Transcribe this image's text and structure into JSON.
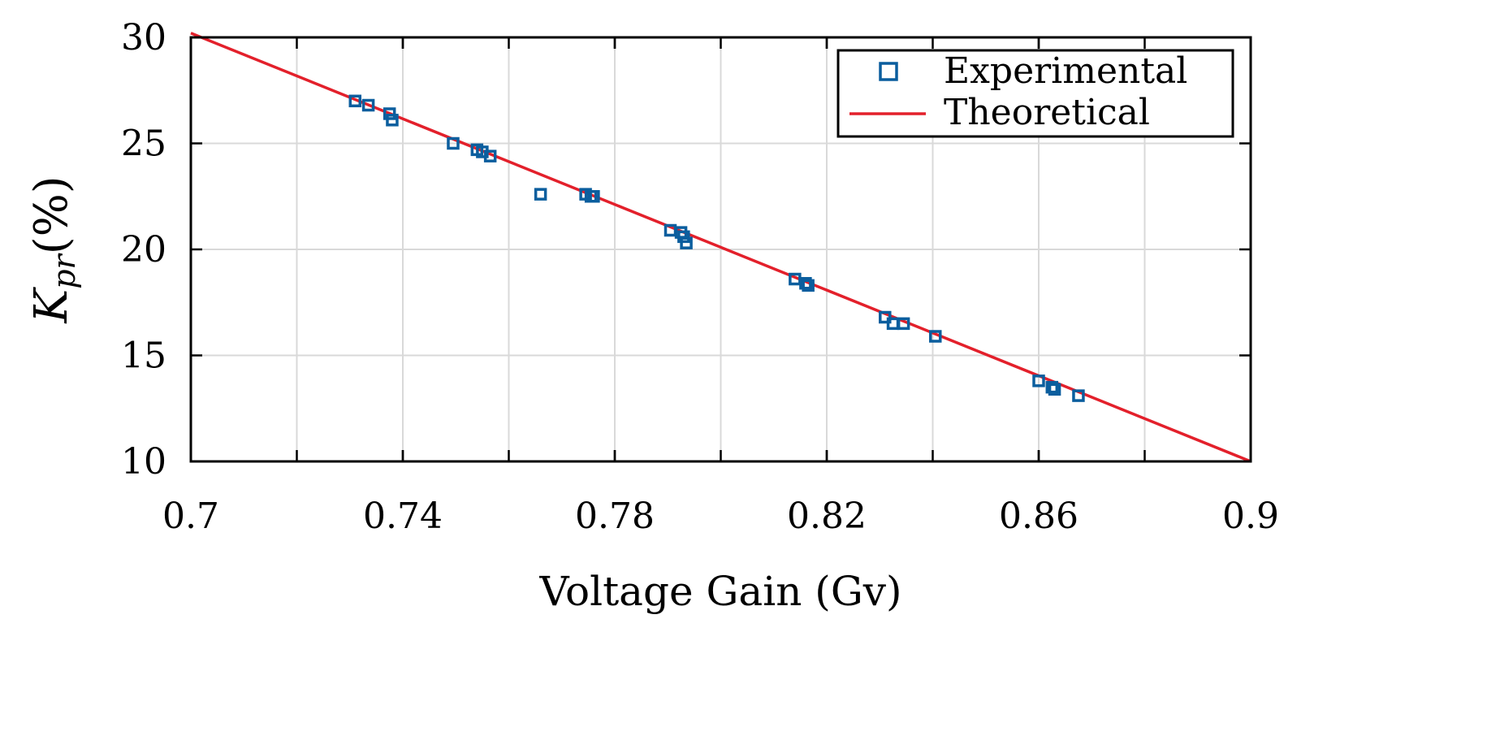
{
  "chart_data": {
    "type": "scatter",
    "title": "",
    "xlabel": "Voltage Gain (Gv)",
    "ylabel_main": "K",
    "ylabel_sub": "pr",
    "ylabel_unit": "(%)",
    "xlim": [
      0.7,
      0.9
    ],
    "ylim": [
      10,
      30
    ],
    "xticks": [
      0.7,
      0.74,
      0.78,
      0.82,
      0.86,
      0.9
    ],
    "xtick_labels": [
      "0.7",
      "0.74",
      "0.78",
      "0.82",
      "0.86",
      "0.9"
    ],
    "xgrid": [
      0.72,
      0.74,
      0.76,
      0.78,
      0.8,
      0.82,
      0.84,
      0.86,
      0.88
    ],
    "yticks": [
      10,
      15,
      20,
      25,
      30
    ],
    "ytick_labels": [
      "10",
      "15",
      "20",
      "25",
      "30"
    ],
    "grid": true,
    "legend_position": "top-right",
    "colors": {
      "experimental": "#0b5e9e",
      "theoretical": "#e3202b",
      "grid": "#d9d9d9",
      "axis": "#000000"
    },
    "series": [
      {
        "name": "Experimental",
        "kind": "scatter",
        "marker": "square",
        "x": [
          0.731,
          0.7335,
          0.7375,
          0.738,
          0.7495,
          0.754,
          0.755,
          0.7565,
          0.766,
          0.7745,
          0.7755,
          0.776,
          0.7905,
          0.7925,
          0.793,
          0.7935,
          0.814,
          0.816,
          0.8165,
          0.831,
          0.8325,
          0.8345,
          0.8405,
          0.86,
          0.8625,
          0.863,
          0.8675
        ],
        "y": [
          27.0,
          26.8,
          26.4,
          26.1,
          25.0,
          24.7,
          24.6,
          24.4,
          22.6,
          22.6,
          22.5,
          22.5,
          20.9,
          20.8,
          20.6,
          20.3,
          18.6,
          18.4,
          18.3,
          16.8,
          16.5,
          16.5,
          15.9,
          13.8,
          13.5,
          13.4,
          13.1
        ]
      },
      {
        "name": "Theoretical",
        "kind": "line",
        "x": [
          0.7,
          0.9
        ],
        "y": [
          30.2,
          10.0
        ]
      }
    ]
  }
}
